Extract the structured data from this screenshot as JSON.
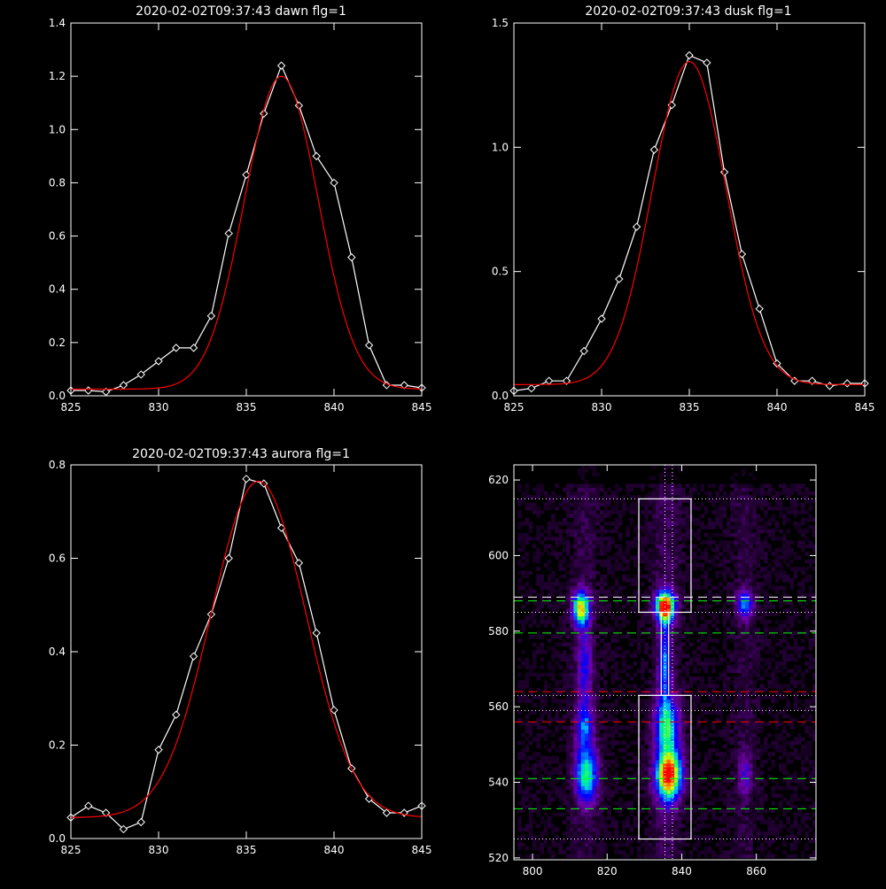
{
  "chart_data": [
    {
      "type": "line",
      "title": "2020-02-02T09:37:43 dawn flg=1",
      "xlim": [
        825,
        845
      ],
      "ylim": [
        0,
        1.4
      ],
      "xticks": [
        825,
        830,
        835,
        840,
        845
      ],
      "yticks": [
        0.0,
        0.2,
        0.4,
        0.6,
        0.8,
        1.0,
        1.2,
        1.4
      ],
      "ytick_labels": [
        "0.0",
        "0.2",
        "0.4",
        "0.6",
        "0.8",
        "1.0",
        "1.2",
        "1.4"
      ],
      "series": [
        {
          "color": "#ffffff",
          "marker": "diamond",
          "x": [
            825,
            826,
            827,
            828,
            829,
            830,
            831,
            832,
            833,
            834,
            835,
            836,
            837,
            838,
            839,
            840,
            841,
            842,
            843,
            844,
            845
          ],
          "y": [
            0.02,
            0.02,
            0.015,
            0.04,
            0.08,
            0.13,
            0.18,
            0.18,
            0.3,
            0.61,
            0.83,
            1.06,
            1.24,
            1.09,
            0.9,
            0.8,
            0.52,
            0.19,
            0.04,
            0.04,
            0.03
          ]
        },
        {
          "color": "#ff0000",
          "marker": "none",
          "fit": "gaussian",
          "amplitude": 1.175,
          "center": 837.0,
          "sigma": 2.1,
          "baseline": 0.025
        }
      ]
    },
    {
      "type": "line",
      "title": "2020-02-02T09:37:43 dusk flg=1",
      "xlim": [
        825,
        845
      ],
      "ylim": [
        0,
        1.5
      ],
      "xticks": [
        825,
        830,
        835,
        840,
        845
      ],
      "yticks": [
        0.0,
        0.5,
        1.0,
        1.5
      ],
      "ytick_labels": [
        "0.0",
        "0.5",
        "1.0",
        "1.5"
      ],
      "series": [
        {
          "color": "#ffffff",
          "marker": "diamond",
          "x": [
            825,
            826,
            827,
            828,
            829,
            830,
            831,
            832,
            833,
            834,
            835,
            836,
            837,
            838,
            839,
            840,
            841,
            842,
            843,
            844,
            845
          ],
          "y": [
            0.02,
            0.03,
            0.06,
            0.06,
            0.18,
            0.31,
            0.47,
            0.68,
            0.99,
            1.17,
            1.37,
            1.34,
            0.9,
            0.57,
            0.35,
            0.13,
            0.06,
            0.06,
            0.04,
            0.05,
            0.05
          ]
        },
        {
          "color": "#ff0000",
          "marker": "none",
          "fit": "gaussian",
          "amplitude": 1.3,
          "center": 835.0,
          "sigma": 2.1,
          "baseline": 0.045
        }
      ]
    },
    {
      "type": "line",
      "title": "2020-02-02T09:37:43 aurora flg=1",
      "xlim": [
        825,
        845
      ],
      "ylim": [
        0,
        0.8
      ],
      "xticks": [
        825,
        830,
        835,
        840,
        845
      ],
      "yticks": [
        0.0,
        0.2,
        0.4,
        0.6,
        0.8
      ],
      "ytick_labels": [
        "0.0",
        "0.2",
        "0.4",
        "0.6",
        "0.8"
      ],
      "series": [
        {
          "color": "#ffffff",
          "marker": "diamond",
          "x": [
            825,
            826,
            827,
            828,
            829,
            830,
            831,
            832,
            833,
            834,
            835,
            836,
            837,
            838,
            839,
            840,
            841,
            842,
            843,
            844,
            845
          ],
          "y": [
            0.045,
            0.07,
            0.055,
            0.02,
            0.035,
            0.19,
            0.265,
            0.39,
            0.48,
            0.6,
            0.77,
            0.76,
            0.665,
            0.59,
            0.44,
            0.275,
            0.15,
            0.085,
            0.055,
            0.055,
            0.07
          ]
        },
        {
          "color": "#ff0000",
          "marker": "none",
          "fit": "gaussian",
          "amplitude": 0.72,
          "center": 835.7,
          "sigma": 2.7,
          "baseline": 0.045
        }
      ]
    },
    {
      "type": "heatmap",
      "xlim": [
        795,
        876
      ],
      "ylim": [
        519.5,
        624
      ],
      "xticks": [
        800,
        820,
        840,
        860
      ],
      "yticks": [
        520,
        540,
        560,
        580,
        600,
        620
      ],
      "colormap": "rainbow",
      "blobs": [
        {
          "x": 813,
          "y": 586,
          "sx": 1.5,
          "sy": 3.0,
          "amp": 0.75
        },
        {
          "x": 835.5,
          "y": 586.5,
          "sx": 1.7,
          "sy": 2.6,
          "amp": 1.0
        },
        {
          "x": 857,
          "y": 587,
          "sx": 1.5,
          "sy": 2.5,
          "amp": 0.4
        },
        {
          "x": 835.5,
          "y": 572,
          "sx": 1.0,
          "sy": 9.0,
          "amp": 0.35
        },
        {
          "x": 814,
          "y": 571,
          "sx": 1.3,
          "sy": 7.0,
          "amp": 0.25
        },
        {
          "x": 836,
          "y": 555,
          "sx": 2.2,
          "sy": 5.0,
          "amp": 0.5
        },
        {
          "x": 836.5,
          "y": 542,
          "sx": 2.3,
          "sy": 4.5,
          "amp": 0.95
        },
        {
          "x": 814.5,
          "y": 542,
          "sx": 2.0,
          "sy": 5.0,
          "amp": 0.55
        },
        {
          "x": 814,
          "y": 555,
          "sx": 1.5,
          "sy": 4.0,
          "amp": 0.35
        },
        {
          "x": 857,
          "y": 542,
          "sx": 1.2,
          "sy": 4.0,
          "amp": 0.2
        }
      ],
      "boxes": [
        {
          "x0": 828.5,
          "x1": 842.5,
          "y0": 585,
          "y1": 615
        },
        {
          "x0": 828.5,
          "x1": 842.5,
          "y0": 525,
          "y1": 563
        },
        {
          "x0": 834.5,
          "x1": 836.5,
          "y0": 563,
          "y1": 585
        }
      ],
      "hlines": [
        {
          "y": 615,
          "color": "#ffffff",
          "style": "dotted"
        },
        {
          "y": 589,
          "color": "#ffffff",
          "style": "dashed"
        },
        {
          "y": 585,
          "color": "#ffffff",
          "style": "dotted"
        },
        {
          "y": 588,
          "color": "#00ff00",
          "style": "dashed"
        },
        {
          "y": 579.5,
          "color": "#00ff00",
          "style": "dashed"
        },
        {
          "y": 564,
          "color": "#ff0000",
          "style": "dashed"
        },
        {
          "y": 563,
          "color": "#ffffff",
          "style": "dotted"
        },
        {
          "y": 559,
          "color": "#ffffff",
          "style": "dotted"
        },
        {
          "y": 556,
          "color": "#ff0000",
          "style": "dashed"
        },
        {
          "y": 541,
          "color": "#00ff00",
          "style": "dashed"
        },
        {
          "y": 533,
          "color": "#00ff00",
          "style": "dashed"
        },
        {
          "y": 525,
          "color": "#ffffff",
          "style": "dotted"
        }
      ],
      "vlines": [
        {
          "x": 835.5,
          "color": "#ffffff",
          "style": "dotted"
        },
        {
          "x": 837.5,
          "color": "#ffffff",
          "style": "dotted"
        }
      ]
    }
  ],
  "colors": {
    "background": "#000000",
    "axes": "#ffffff",
    "fit": "#ff0000",
    "data": "#ffffff"
  }
}
